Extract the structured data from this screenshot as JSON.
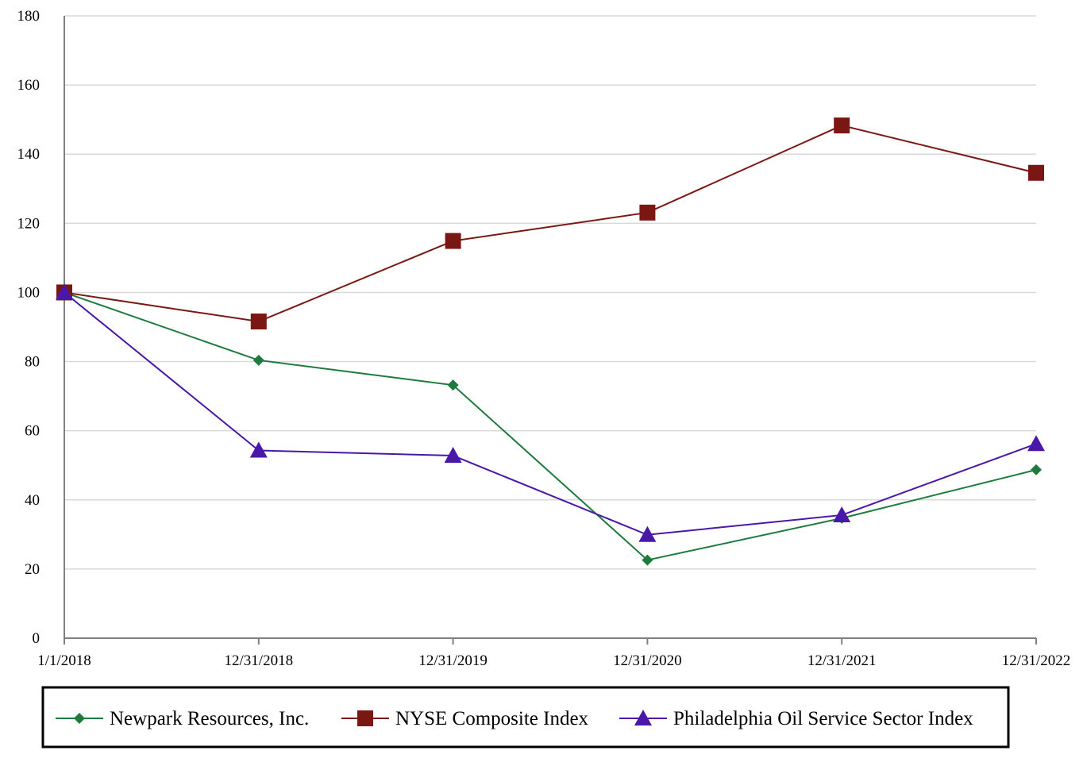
{
  "chart_data": {
    "type": "line",
    "title": "",
    "xlabel": "",
    "ylabel": "",
    "categories": [
      "1/1/2018",
      "12/31/2018",
      "12/31/2019",
      "12/31/2020",
      "12/31/2021",
      "12/31/2022"
    ],
    "ylim": [
      0,
      180
    ],
    "yticks": [
      0,
      20,
      40,
      60,
      80,
      100,
      120,
      140,
      160,
      180
    ],
    "grid": "horizontal",
    "legend_position": "bottom",
    "series": [
      {
        "name": "Newpark Resources, Inc.",
        "color": "#1e7b3e",
        "marker": "diamond",
        "values": [
          100,
          80.4,
          73.2,
          22.6,
          34.7,
          48.7
        ]
      },
      {
        "name": "NYSE Composite Index",
        "color": "#7b1712",
        "marker": "square",
        "values": [
          100,
          91.6,
          114.9,
          123.1,
          148.3,
          134.6
        ]
      },
      {
        "name": "Philadelphia Oil Service Sector Index",
        "color": "#4a18a8",
        "marker": "triangle",
        "values": [
          100,
          54.3,
          52.8,
          29.9,
          35.6,
          56.2
        ]
      }
    ]
  }
}
